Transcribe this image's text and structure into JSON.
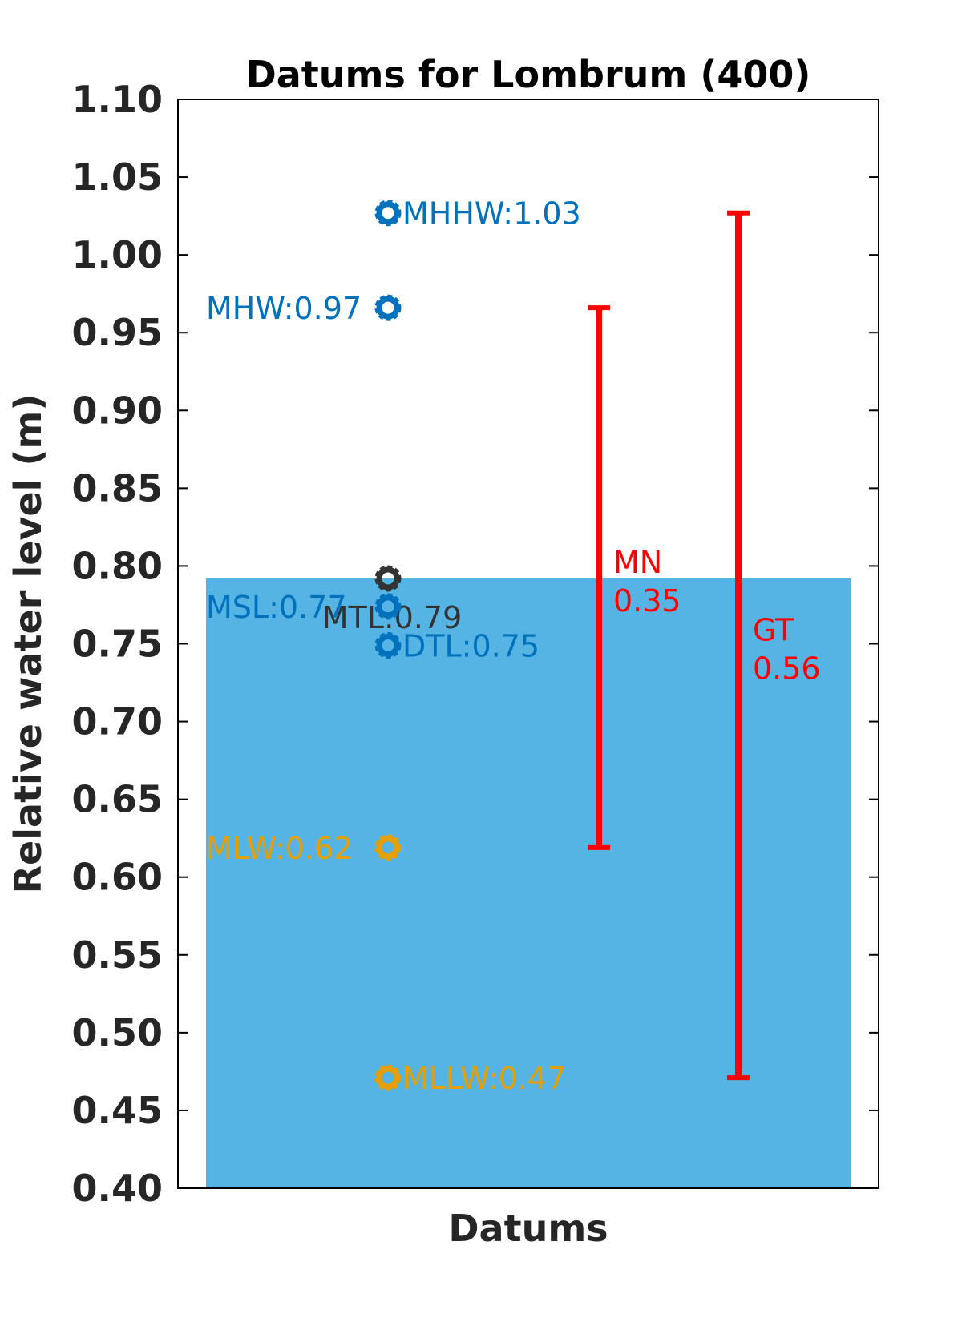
{
  "chart_data": {
    "type": "scatter",
    "title": "Datums for Lombrum (400)",
    "xlabel": "Datums",
    "ylabel": "Relative water level (m)",
    "ylim": [
      0.4,
      1.1
    ],
    "yticks": [
      "0.40",
      "0.45",
      "0.50",
      "0.55",
      "0.60",
      "0.65",
      "0.70",
      "0.75",
      "0.80",
      "0.85",
      "0.90",
      "0.95",
      "1.00",
      "1.05",
      "1.10"
    ],
    "grid": false,
    "water_fill": {
      "level": 0.792,
      "color": "#56B4E5"
    },
    "datums": [
      {
        "name": "MHHW",
        "value": 1.027,
        "label": "MHHW:1.03",
        "color": "#0072BD",
        "label_side": "right"
      },
      {
        "name": "MHW",
        "value": 0.966,
        "label": "MHW:0.97",
        "color": "#0072BD",
        "label_side": "left"
      },
      {
        "name": "MTL",
        "value": 0.792,
        "label": "MTL:0.79",
        "color": "#333333",
        "label_side": "below"
      },
      {
        "name": "MSL",
        "value": 0.774,
        "label": "MSL:0.77",
        "color": "#0072BD",
        "label_side": "left"
      },
      {
        "name": "DTL",
        "value": 0.749,
        "label": "DTL:0.75",
        "color": "#0072BD",
        "label_side": "right"
      },
      {
        "name": "MLW",
        "value": 0.619,
        "label": "MLW:0.62",
        "color": "#E69F00",
        "label_side": "left"
      },
      {
        "name": "MLLW",
        "value": 0.471,
        "label": "MLLW:0.47",
        "color": "#E69F00",
        "label_side": "right"
      }
    ],
    "ranges": [
      {
        "name": "MN",
        "value_label": "0.35",
        "low": 0.619,
        "high": 0.966,
        "color": "#FF0000"
      },
      {
        "name": "GT",
        "value_label": "0.56",
        "low": 0.471,
        "high": 1.027,
        "color": "#FF0000"
      }
    ]
  }
}
